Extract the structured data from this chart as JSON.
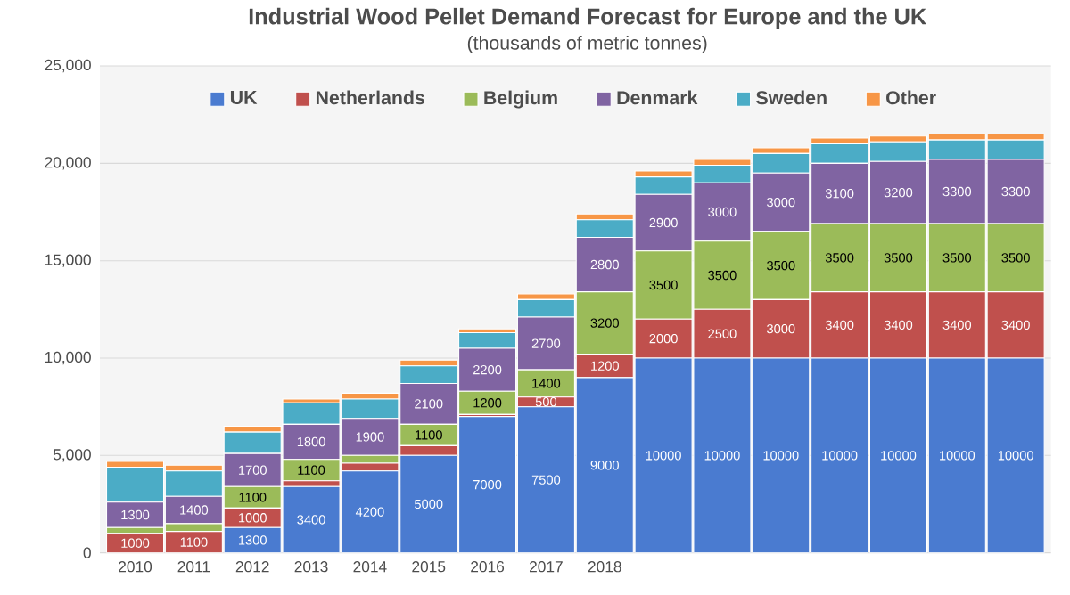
{
  "chart_data": {
    "type": "bar",
    "stacked": true,
    "title": "Industrial Wood Pellet Demand Forecast for Europe and the UK",
    "subtitle": "(thousands of metric tonnes)",
    "categories": [
      "2010",
      "2011",
      "2012",
      "2013",
      "2014",
      "2015",
      "2016",
      "2017",
      "2018",
      null,
      null,
      null,
      null,
      null,
      null,
      null
    ],
    "series": [
      {
        "name": "UK",
        "color": "#4a7bd0",
        "values": [
          0,
          0,
          1300,
          3400,
          4200,
          5000,
          7000,
          7500,
          9000,
          10000,
          10000,
          10000,
          10000,
          10000,
          10000,
          10000
        ],
        "value_labels": [
          null,
          null,
          "1300",
          "3400",
          "4200",
          "5000",
          "7000",
          "7500",
          "9000",
          "10000",
          "10000",
          "10000",
          "10000",
          "10000",
          "10000",
          "10000"
        ]
      },
      {
        "name": "Netherlands",
        "color": "#c0504d",
        "values": [
          1000,
          1100,
          1000,
          300,
          400,
          500,
          100,
          500,
          1200,
          2000,
          2500,
          3000,
          3400,
          3400,
          3400,
          3400
        ],
        "value_labels": [
          "1000",
          "1100",
          "1000",
          null,
          null,
          null,
          null,
          "500",
          "1200",
          "2000",
          "2500",
          "3000",
          "3400",
          "3400",
          "3400",
          "3400"
        ]
      },
      {
        "name": "Belgium",
        "color": "#9bbb59",
        "values": [
          300,
          400,
          1100,
          1100,
          400,
          1100,
          1200,
          1400,
          3200,
          3500,
          3500,
          3500,
          3500,
          3500,
          3500,
          3500
        ],
        "value_labels": [
          null,
          null,
          "1100",
          "1100",
          null,
          "1100",
          "1200",
          "1400",
          "3200",
          "3500",
          "3500",
          "3500",
          "3500",
          "3500",
          "3500",
          "3500"
        ]
      },
      {
        "name": "Denmark",
        "color": "#8064a2",
        "values": [
          1300,
          1400,
          1700,
          1800,
          1900,
          2100,
          2200,
          2700,
          2800,
          2900,
          3000,
          3000,
          3100,
          3200,
          3300,
          3300
        ],
        "value_labels": [
          "1300",
          "1400",
          "1700",
          "1800",
          "1900",
          "2100",
          "2200",
          "2700",
          "2800",
          "2900",
          "3000",
          "3000",
          "3100",
          "3200",
          "3300",
          "3300"
        ]
      },
      {
        "name": "Sweden",
        "color": "#4bacc6",
        "values": [
          1800,
          1300,
          1100,
          1100,
          1000,
          900,
          800,
          900,
          900,
          900,
          900,
          1000,
          1000,
          1000,
          1000,
          1000
        ]
      },
      {
        "name": "Other",
        "color": "#f79646",
        "values": [
          300,
          300,
          300,
          200,
          300,
          300,
          200,
          300,
          300,
          300,
          300,
          300,
          300,
          300,
          300,
          300
        ]
      }
    ],
    "ylim": [
      0,
      25000
    ],
    "yticks": [
      {
        "value": 0,
        "label": "0"
      },
      {
        "value": 5000,
        "label": "5,000"
      },
      {
        "value": 10000,
        "label": "10,000"
      },
      {
        "value": 15000,
        "label": "15,000"
      },
      {
        "value": 20000,
        "label": "20,000"
      },
      {
        "value": 25000,
        "label": "25,000"
      }
    ],
    "grid": "y",
    "legend": "top"
  }
}
